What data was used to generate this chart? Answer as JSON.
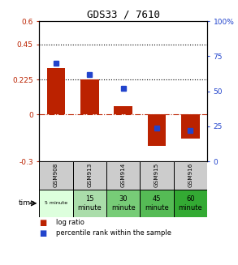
{
  "title": "GDS33 / 7610",
  "samples": [
    "GSM908",
    "GSM913",
    "GSM914",
    "GSM915",
    "GSM916"
  ],
  "log_ratio": [
    0.3,
    0.225,
    0.055,
    -0.2,
    -0.155
  ],
  "percentile_rank": [
    70,
    62,
    52,
    24,
    22
  ],
  "bar_color": "#bb2200",
  "dot_color": "#2244cc",
  "ylim_left": [
    -0.3,
    0.6
  ],
  "ylim_right": [
    0,
    100
  ],
  "yticks_left": [
    -0.3,
    0,
    0.225,
    0.45,
    0.6
  ],
  "yticks_right": [
    0,
    25,
    50,
    75,
    100
  ],
  "hline_y": [
    0.225,
    0.45
  ],
  "zero_line_color": "#bb2200",
  "hline_color": "black",
  "sample_bg_color": "#cccccc",
  "bar_width": 0.55,
  "time_labels": [
    "5 minute",
    "15\nminute",
    "30\nminute",
    "45\nminute",
    "60\nminute"
  ],
  "time_colors": [
    "#ddffdd",
    "#aaddaa",
    "#77cc77",
    "#55bb55",
    "#33aa33"
  ],
  "legend_labels": [
    "log ratio",
    "percentile rank within the sample"
  ]
}
